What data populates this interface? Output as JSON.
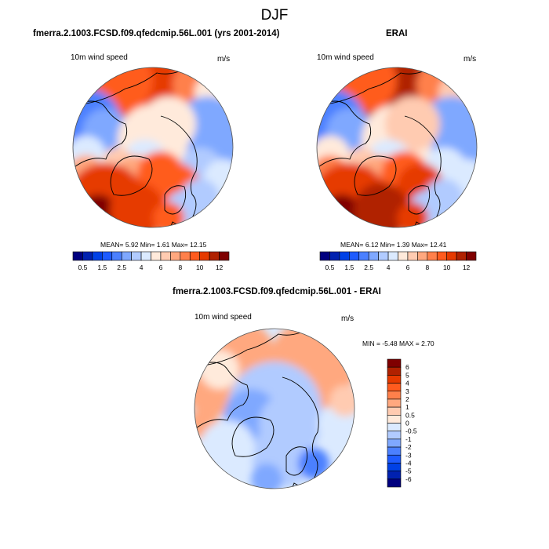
{
  "figure": {
    "title": "DJF"
  },
  "chart_data": [
    {
      "type": "heatmap",
      "projection": "north-polar-stereographic",
      "title": "fmerra.2.1003.FCSD.f09.qfedcmip.56L.001 (yrs 2001-2014)",
      "left_label": "10m wind speed",
      "right_label": "m/s",
      "stats": {
        "mean": "5.92",
        "min": "1.61",
        "max": "12.15"
      },
      "stats_text": "MEAN=  5.92  Min=  1.61  Max=  12.15",
      "colorbar": {
        "orientation": "horizontal",
        "levels": [
          0.5,
          1,
          1.5,
          2,
          2.5,
          3,
          4,
          5,
          6,
          7,
          8,
          9,
          10,
          11,
          12
        ],
        "shown_labels": [
          "0.5",
          "1.5",
          "2.5",
          "4",
          "6",
          "8",
          "10",
          "12"
        ]
      }
    },
    {
      "type": "heatmap",
      "projection": "north-polar-stereographic",
      "title": "ERAI",
      "left_label": "10m wind speed",
      "right_label": "m/s",
      "stats": {
        "mean": "6.12",
        "min": "1.39",
        "max": "12.41"
      },
      "stats_text": "MEAN=  6.12  Min=  1.39  Max=  12.41",
      "colorbar": {
        "orientation": "horizontal",
        "levels": [
          0.5,
          1,
          1.5,
          2,
          2.5,
          3,
          4,
          5,
          6,
          7,
          8,
          9,
          10,
          11,
          12
        ],
        "shown_labels": [
          "0.5",
          "1.5",
          "2.5",
          "4",
          "6",
          "8",
          "10",
          "12"
        ]
      }
    },
    {
      "type": "heatmap",
      "projection": "north-polar-stereographic",
      "title": "fmerra.2.1003.FCSD.f09.qfedcmip.56L.001 - ERAI",
      "left_label": "10m wind speed",
      "right_label": "m/s",
      "stats": {
        "min": "-5.48",
        "max": "2.70"
      },
      "stats_text": "MIN =  -5.48 MAX =   2.70",
      "colorbar": {
        "orientation": "vertical",
        "levels": [
          -6,
          -5,
          -4,
          -3,
          -2,
          -1,
          -0.5,
          0,
          0.5,
          1,
          2,
          3,
          4,
          5,
          6
        ],
        "shown_labels": [
          "-6",
          "-5",
          "-4",
          "-3",
          "-2",
          "-1",
          "-0.5",
          "0",
          "0.5",
          "1",
          "2",
          "3",
          "4",
          "5",
          "6"
        ]
      }
    }
  ],
  "palette": [
    "#00007f",
    "#0021b0",
    "#0041e6",
    "#1e5bff",
    "#4b80ff",
    "#7fa8ff",
    "#b1cbff",
    "#dbeaff",
    "#ffeadb",
    "#ffcbb1",
    "#ffa87f",
    "#ff804b",
    "#ff5b1e",
    "#e63a00",
    "#b02100",
    "#7f0000"
  ]
}
